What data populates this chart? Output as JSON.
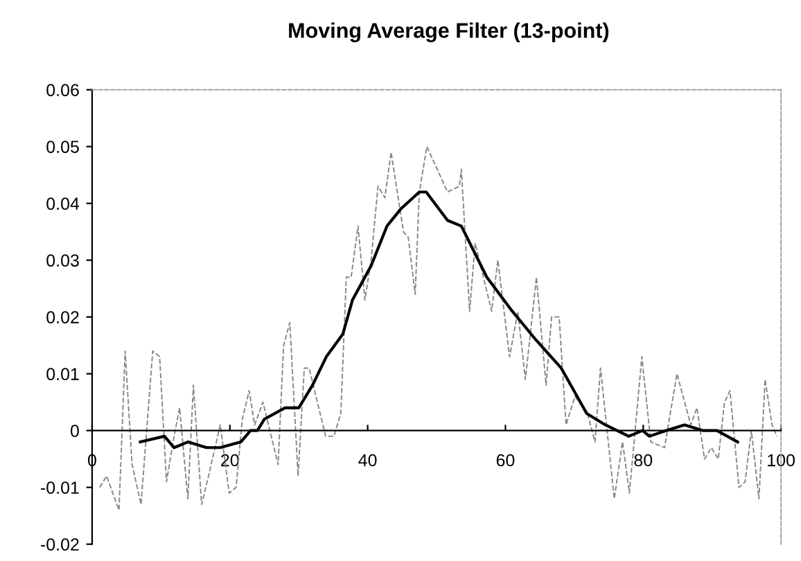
{
  "chart_data": {
    "type": "line",
    "title": "Moving Average Filter (13-point)",
    "xlim": [
      0,
      100
    ],
    "xticks": [
      0,
      20,
      40,
      60,
      80,
      100
    ],
    "ylim": [
      -0.02,
      0.06
    ],
    "yticks": [
      -0.02,
      -0.01,
      0,
      0.01,
      0.02,
      0.03,
      0.04,
      0.05,
      0.06
    ],
    "grid": false,
    "legend": false,
    "series": [
      {
        "color": "#888888",
        "line_style": "dashed",
        "x": [
          1.1,
          2.1,
          3.9,
          4.8,
          5.8,
          7.1,
          8.8,
          9.8,
          10.8,
          11.9,
          12.7,
          13.9,
          14.7,
          15.9,
          16.9,
          18.6,
          19.9,
          20.9,
          21.8,
          22.8,
          23.6,
          24.8,
          27.0,
          27.8,
          28.7,
          29.9,
          30.8,
          31.5,
          33.9,
          35.1,
          36.1,
          36.9,
          37.6,
          38.6,
          39.6,
          40.5,
          41.5,
          42.5,
          43.4,
          45.2,
          45.9,
          46.9,
          47.5,
          48.6,
          51.6,
          53.3,
          53.6,
          54.8,
          55.6,
          58.0,
          58.9,
          60.6,
          61.8,
          62.9,
          64.5,
          65.9,
          66.7,
          67.8,
          68.8,
          70.1,
          71.9,
          73.0,
          73.8,
          75.8,
          77.0,
          78.0,
          79.8,
          81.1,
          83.1,
          84.9,
          86.9,
          87.8,
          88.9,
          89.9,
          90.9,
          91.8,
          92.6,
          93.9,
          94.8,
          95.7,
          96.8,
          97.7,
          98.7,
          99.4
        ],
        "values": [
          -0.01,
          -0.008,
          -0.014,
          0.014,
          -0.006,
          -0.013,
          0.014,
          0.013,
          -0.009,
          -0.001,
          0.004,
          -0.012,
          0.008,
          -0.013,
          -0.008,
          0.001,
          -0.011,
          -0.01,
          0.002,
          0.007,
          0.001,
          0.005,
          -0.006,
          0.015,
          0.019,
          -0.008,
          0.011,
          0.011,
          -0.001,
          -0.001,
          0.003,
          0.027,
          0.027,
          0.036,
          0.023,
          0.03,
          0.043,
          0.041,
          0.049,
          0.035,
          0.034,
          0.024,
          0.042,
          0.05,
          0.042,
          0.043,
          0.046,
          0.021,
          0.033,
          0.021,
          0.03,
          0.013,
          0.021,
          0.009,
          0.027,
          0.008,
          0.02,
          0.02,
          0.001,
          0.006,
          0.003,
          -0.002,
          0.011,
          -0.012,
          -0.002,
          -0.011,
          0.013,
          -0.002,
          -0.003,
          0.01,
          0.001,
          0.004,
          -0.005,
          -0.003,
          -0.005,
          0.005,
          0.007,
          -0.01,
          -0.009,
          0.0,
          -0.012,
          0.009,
          0.001,
          -0.001
        ]
      },
      {
        "color": "#000000",
        "line_style": "solid",
        "x": [
          7,
          10.5,
          11.9,
          13.9,
          16.6,
          18.6,
          21.6,
          23,
          24,
          25,
          28,
          30,
          32,
          34,
          36.4,
          37.8,
          40.5,
          42.8,
          44.8,
          47.5,
          48.5,
          51.6,
          53.6,
          57.3,
          61,
          64.4,
          68.1,
          71.8,
          74.5,
          77.9,
          79.9,
          80.9,
          83.3,
          86,
          88.7,
          90.7,
          93.7
        ],
        "values": [
          -0.002,
          -0.001,
          -0.003,
          -0.002,
          -0.003,
          -0.003,
          -0.002,
          0.0,
          0.0,
          0.002,
          0.004,
          0.004,
          0.008,
          0.013,
          0.017,
          0.023,
          0.029,
          0.036,
          0.039,
          0.042,
          0.042,
          0.037,
          0.036,
          0.027,
          0.021,
          0.016,
          0.011,
          0.003,
          0.001,
          -0.001,
          0.0,
          -0.001,
          0.0,
          0.001,
          0.0,
          0.0,
          -0.002
        ]
      }
    ]
  }
}
